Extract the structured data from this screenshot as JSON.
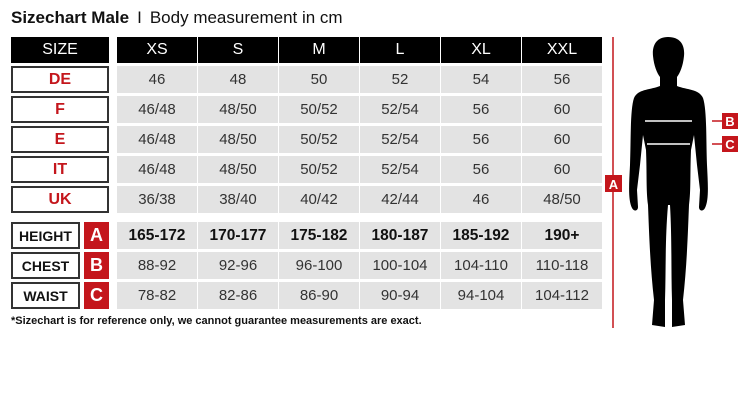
{
  "title": {
    "bold": "Sizechart Male",
    "separator": "I",
    "subtitle": "Body measurement in cm"
  },
  "header": {
    "size_label": "SIZE",
    "sizes": [
      "XS",
      "S",
      "M",
      "L",
      "XL",
      "XXL"
    ]
  },
  "regions": [
    {
      "label": "DE",
      "values": [
        "46",
        "48",
        "50",
        "52",
        "54",
        "56"
      ]
    },
    {
      "label": "F",
      "values": [
        "46/48",
        "48/50",
        "50/52",
        "52/54",
        "56",
        "60"
      ]
    },
    {
      "label": "E",
      "values": [
        "46/48",
        "48/50",
        "50/52",
        "52/54",
        "56",
        "60"
      ]
    },
    {
      "label": "IT",
      "values": [
        "46/48",
        "48/50",
        "50/52",
        "52/54",
        "56",
        "60"
      ]
    },
    {
      "label": "UK",
      "values": [
        "36/38",
        "38/40",
        "40/42",
        "42/44",
        "46",
        "48/50"
      ]
    }
  ],
  "measurements": [
    {
      "label": "HEIGHT",
      "letter": "A",
      "values": [
        "165-172",
        "170-177",
        "175-182",
        "180-187",
        "185-192",
        "190+"
      ]
    },
    {
      "label": "CHEST",
      "letter": "B",
      "values": [
        "88-92",
        "92-96",
        "96-100",
        "100-104",
        "104-110",
        "110-118"
      ]
    },
    {
      "label": "WAIST",
      "letter": "C",
      "values": [
        "78-82",
        "82-86",
        "86-90",
        "90-94",
        "94-104",
        "104-112"
      ]
    }
  ],
  "footnote": "*Sizechart is for reference only, we cannot guarantee measurements are exact.",
  "figure": {
    "height_marker": "A",
    "chest_marker": "B",
    "waist_marker": "C"
  },
  "colors": {
    "accent": "#c4161c",
    "header": "#000000",
    "cell": "#e3e3e3"
  }
}
